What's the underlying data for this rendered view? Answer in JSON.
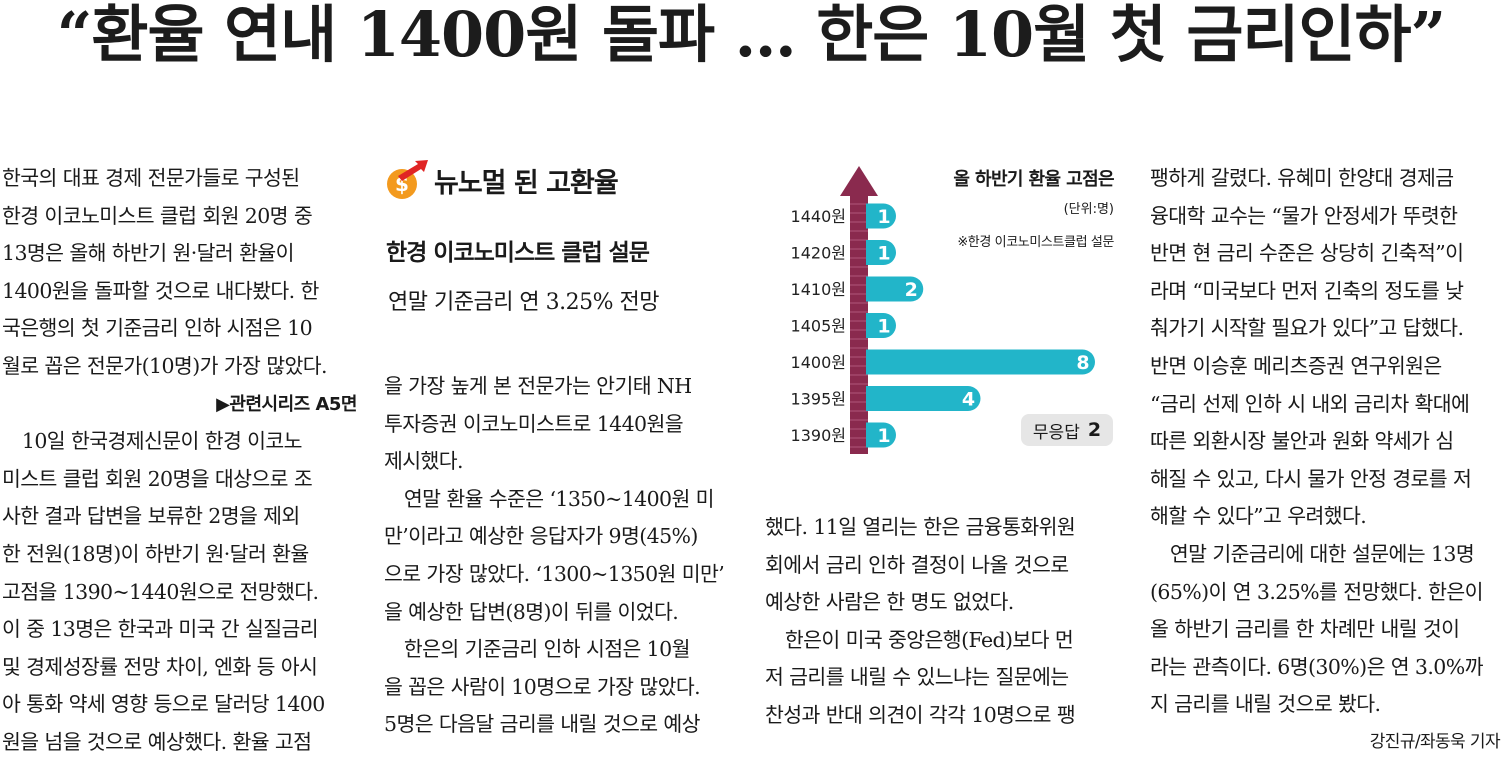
{
  "headline": "“환율 연내 1400원 돌파 … 한은 10월 첫 금리인하”",
  "col1": [
    "한국의 대표 경제 전문가들로 구성된",
    "한경 이코노미스트 클럽 회원 20명 중",
    "13명은 올해 하반기 원·달러 환율이",
    "1400원을 돌파할 것으로 내다봤다. 한",
    "국은행의 첫 기준금리 인하 시점은 10",
    "월로 꼽은 전문가(10명)가 가장 많았다."
  ],
  "related": "▶관련시리즈 A5면",
  "col1b": [
    "　10일 한국경제신문이 한경 이코노",
    "미스트 클럽 회원 20명을 대상으로 조",
    "사한 결과 답변을 보류한 2명을 제외",
    "한 전원(18명)이 하반기 원·달러 환율",
    "고점을 1390~1440원으로 전망했다.",
    "이 중 13명은 한국과 미국 간 실질금리",
    "및 경제성장률 전망 차이, 엔화 등 아시",
    "아 통화 약세 영향 등으로 달러당 1400",
    "원을 넘을 것으로 예상했다. 환율 고점"
  ],
  "graphic_title": "뉴노멀 된 고환율",
  "survey_title": "한경 이코노미스트 클럽 설문",
  "survey_sub": "연말 기준금리 연 3.25% 전망",
  "col2": [
    "을 가장 높게 본 전문가는 안기태 NH",
    "투자증권 이코노미스트로 1440원을",
    "제시했다.",
    "　연말 환율 수준은 ‘1350~1400원 미",
    "만’이라고 예상한 응답자가 9명(45%)",
    "으로 가장 많았다. ‘1300~1350원 미만’",
    "을 예상한 답변(8명)이 뒤를 이었다.",
    "　한은의 기준금리 인하 시점은 10월",
    "을 꼽은 사람이 10명으로 가장 많았다.",
    "5명은 다음달 금리를 내릴 것으로 예상"
  ],
  "col3": [
    "했다. 11일 열리는 한은 금융통화위원",
    "회에서 금리 인하 결정이 나올 것으로",
    "예상한 사람은 한 명도 없었다.",
    "　한은이 미국 중앙은행(Fed)보다 먼",
    "저 금리를 내릴 수 있느냐는 질문에는",
    "찬성과 반대 의견이 각각 10명으로 팽"
  ],
  "col4": [
    "팽하게 갈렸다. 유혜미 한양대 경제금",
    "융대학 교수는 “물가 안정세가 뚜렷한",
    "반면 현 금리 수준은 상당히 긴축적”이",
    "라며 “미국보다 먼저 긴축의 정도를 낮",
    "춰가기 시작할 필요가 있다”고 답했다.",
    "반면 이승훈 메리츠증권 연구위원은",
    "“금리 선제 인하 시 내외 금리차 확대에",
    "따른 외환시장 불안과 원화 약세가 심",
    "해질 수 있고, 다시 물가 안정 경로를 저",
    "해할 수 있다”고 우려했다.",
    "　연말 기준금리에 대한 설문에는 13명",
    "(65%)이 연 3.25%를 전망했다. 한은이",
    "올 하반기 금리를 한 차례만 내릴 것이",
    "라는 관측이다. 6명(30%)은 연 3.0%까",
    "지 금리를 내릴 것으로 봤다."
  ],
  "byline": "강진규/좌동욱 기자",
  "noresp": {
    "label": "무응답",
    "value": "2"
  },
  "colors": {
    "bar": "#22b5c9",
    "arrow": "#8a2a4e"
  },
  "chart_data": {
    "type": "bar",
    "title": "올 하반기 환율 고점은",
    "unit": "(단위:명)",
    "source": "※한경 이코노미스트클럽 설문",
    "categories": [
      "1440원",
      "1420원",
      "1410원",
      "1405원",
      "1400원",
      "1395원",
      "1390원"
    ],
    "values": [
      1,
      1,
      2,
      1,
      8,
      4,
      1
    ],
    "xlim": [
      0,
      8
    ]
  }
}
